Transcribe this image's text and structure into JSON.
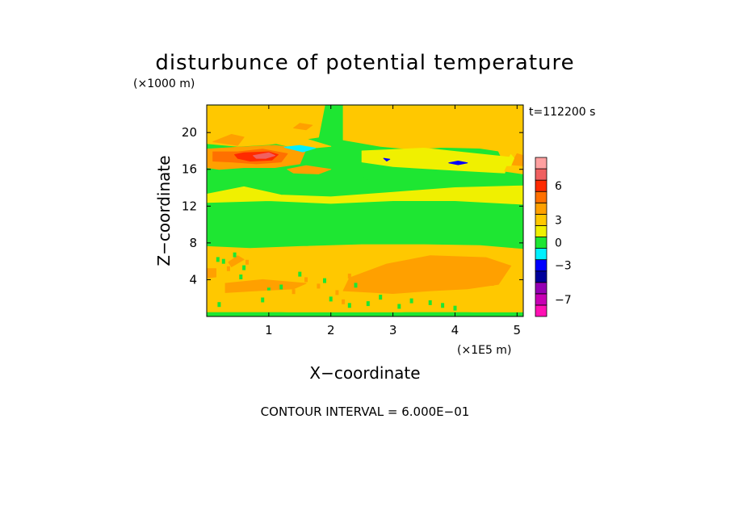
{
  "chart_data": {
    "type": "heatmap",
    "title": "disturbunce of potential temperature",
    "y_unit_label": "(×1000 m)",
    "x_unit_label": "(×1E5 m)",
    "xlabel": "X−coordinate",
    "ylabel": "Z−coordinate",
    "time_label": "t=112200 s",
    "footer": "CONTOUR INTERVAL = 6.000E−01",
    "xlim": [
      0,
      5.1
    ],
    "ylim": [
      0,
      23
    ],
    "x_ticks": [
      {
        "v": 1,
        "label": "1"
      },
      {
        "v": 2,
        "label": "2"
      },
      {
        "v": 3,
        "label": "3"
      },
      {
        "v": 4,
        "label": "4"
      },
      {
        "v": 5,
        "label": "5"
      }
    ],
    "y_ticks": [
      {
        "v": 4,
        "label": "4"
      },
      {
        "v": 8,
        "label": "8"
      },
      {
        "v": 12,
        "label": "12"
      },
      {
        "v": 16,
        "label": "16"
      },
      {
        "v": 20,
        "label": "20"
      }
    ],
    "colorbar": {
      "colors": [
        "#ff10b4",
        "#c800b4",
        "#9600b4",
        "#00009b",
        "#0000ff",
        "#00f0ff",
        "#1ee632",
        "#f0f000",
        "#ffc800",
        "#ffa000",
        "#ff7000",
        "#ff2a00",
        "#f06060",
        "#ffa0a0"
      ],
      "labels": [
        {
          "index": 1.5,
          "label": "−7"
        },
        {
          "index": 4.5,
          "label": "−3"
        },
        {
          "index": 6.5,
          "label": "0"
        },
        {
          "index": 8.5,
          "label": "3"
        },
        {
          "index": 11.5,
          "label": "6"
        }
      ]
    },
    "field": {
      "background_level": 6,
      "regions": [
        {
          "level": 8,
          "points": [
            [
              0,
              0.5
            ],
            [
              1.2,
              0.5
            ],
            [
              2.5,
              0.3
            ],
            [
              3.2,
              0.5
            ],
            [
              4.2,
              0.5
            ],
            [
              5.1,
              0.3
            ],
            [
              5.1,
              7.3
            ],
            [
              4.4,
              7.7
            ],
            [
              3.5,
              7.8
            ],
            [
              2.5,
              7.8
            ],
            [
              1.5,
              7.6
            ],
            [
              0.7,
              7.4
            ],
            [
              0,
              7.6
            ]
          ]
        },
        {
          "level": 9,
          "points": [
            [
              2.2,
              2.8
            ],
            [
              3.0,
              2.5
            ],
            [
              3.6,
              2.8
            ],
            [
              4.2,
              3.0
            ],
            [
              4.7,
              3.5
            ],
            [
              4.9,
              5.5
            ],
            [
              4.5,
              6.4
            ],
            [
              3.6,
              6.6
            ],
            [
              2.9,
              5.7
            ],
            [
              2.3,
              4.2
            ]
          ]
        },
        {
          "level": 9,
          "points": [
            [
              0.3,
              2.6
            ],
            [
              0.8,
              2.8
            ],
            [
              1.4,
              3.0
            ],
            [
              1.6,
              3.6
            ],
            [
              0.9,
              4.0
            ],
            [
              0.3,
              3.6
            ]
          ]
        },
        {
          "level": 9,
          "points": [
            [
              0,
              4.2
            ],
            [
              0.15,
              4.3
            ],
            [
              0.15,
              5.2
            ],
            [
              0,
              5.2
            ]
          ]
        },
        {
          "level": 9,
          "points": [
            [
              0.4,
              5.4
            ],
            [
              0.6,
              6.2
            ],
            [
              0.5,
              6.6
            ],
            [
              0.35,
              5.9
            ]
          ]
        },
        {
          "level": 7,
          "points": [
            [
              0,
              13.3
            ],
            [
              0.6,
              14.1
            ],
            [
              1.2,
              13.2
            ],
            [
              2.0,
              13.0
            ],
            [
              3.0,
              13.5
            ],
            [
              4.0,
              14.0
            ],
            [
              5.1,
              14.2
            ],
            [
              5.1,
              12.2
            ],
            [
              4.0,
              12.6
            ],
            [
              3.0,
              12.6
            ],
            [
              2.0,
              12.3
            ],
            [
              1.0,
              12.6
            ],
            [
              0,
              12.4
            ]
          ]
        },
        {
          "level": 8,
          "points": [
            [
              0,
              22.9
            ],
            [
              0,
              18.8
            ],
            [
              0.5,
              18.5
            ],
            [
              1.0,
              18.7
            ],
            [
              1.5,
              19.2
            ],
            [
              1.8,
              19.5
            ],
            [
              1.9,
              22.9
            ]
          ]
        },
        {
          "level": 8,
          "points": [
            [
              2.2,
              22.9
            ],
            [
              2.2,
              19.2
            ],
            [
              2.8,
              18.5
            ],
            [
              3.3,
              18.2
            ],
            [
              3.8,
              18.4
            ],
            [
              4.4,
              18.3
            ],
            [
              4.7,
              18.0
            ],
            [
              4.8,
              16.5
            ],
            [
              5.1,
              16.0
            ],
            [
              5.1,
              22.9
            ]
          ]
        },
        {
          "level": 7,
          "points": [
            [
              2.5,
              18.0
            ],
            [
              3.5,
              18.3
            ],
            [
              4.2,
              17.8
            ],
            [
              4.9,
              17.3
            ],
            [
              4.8,
              15.6
            ],
            [
              4.0,
              15.9
            ],
            [
              3.0,
              16.3
            ],
            [
              2.5,
              16.8
            ]
          ]
        },
        {
          "level": 6,
          "points": [
            [
              2.5,
              15.2
            ],
            [
              3.2,
              15.4
            ],
            [
              4.0,
              15.4
            ],
            [
              4.8,
              15.3
            ],
            [
              4.8,
              14.6
            ],
            [
              3.5,
              14.7
            ],
            [
              2.6,
              14.8
            ]
          ]
        },
        {
          "level": 9,
          "points": [
            [
              0.1,
              19.0
            ],
            [
              0.4,
              19.8
            ],
            [
              0.6,
              19.5
            ],
            [
              0.5,
              18.6
            ]
          ]
        },
        {
          "level": 9,
          "points": [
            [
              1.4,
              20.5
            ],
            [
              1.6,
              20.3
            ],
            [
              1.7,
              20.8
            ],
            [
              1.5,
              21.0
            ]
          ]
        },
        {
          "level": 8,
          "points": [
            [
              1.0,
              19.0
            ],
            [
              1.6,
              19.3
            ],
            [
              2.0,
              18.5
            ],
            [
              1.5,
              18.2
            ]
          ]
        },
        {
          "level": 9,
          "points": [
            [
              0,
              18.2
            ],
            [
              0.5,
              18.4
            ],
            [
              1.1,
              18.6
            ],
            [
              1.6,
              18.2
            ],
            [
              1.5,
              16.6
            ],
            [
              1.1,
              16.2
            ],
            [
              0.6,
              16.2
            ],
            [
              0.2,
              16.0
            ],
            [
              0,
              16.2
            ]
          ]
        },
        {
          "level": 10,
          "points": [
            [
              0.1,
              17.9
            ],
            [
              0.5,
              17.9
            ],
            [
              0.9,
              18.2
            ],
            [
              1.3,
              17.7
            ],
            [
              1.2,
              16.8
            ],
            [
              0.8,
              16.6
            ],
            [
              0.4,
              16.8
            ],
            [
              0.1,
              16.9
            ]
          ]
        },
        {
          "level": 11,
          "points": [
            [
              0.45,
              17.6
            ],
            [
              0.6,
              17.8
            ],
            [
              1.0,
              17.9
            ],
            [
              1.15,
              17.6
            ],
            [
              1.05,
              17.0
            ],
            [
              0.7,
              16.9
            ],
            [
              0.5,
              17.2
            ]
          ]
        },
        {
          "level": 12,
          "points": [
            [
              0.75,
              17.5
            ],
            [
              1.0,
              17.8
            ],
            [
              1.1,
              17.5
            ],
            [
              0.95,
              17.2
            ],
            [
              0.8,
              17.2
            ]
          ]
        },
        {
          "level": 9,
          "points": [
            [
              1.3,
              16.0
            ],
            [
              1.6,
              16.4
            ],
            [
              2.0,
              16.0
            ],
            [
              1.8,
              15.5
            ],
            [
              1.4,
              15.6
            ]
          ]
        },
        {
          "level": 5,
          "points": [
            [
              1.25,
              18.4
            ],
            [
              1.5,
              18.6
            ],
            [
              1.75,
              18.3
            ],
            [
              1.55,
              17.9
            ]
          ]
        },
        {
          "level": 4,
          "points": [
            [
              2.85,
              17.2
            ],
            [
              2.95,
              17.1
            ],
            [
              2.9,
              16.9
            ]
          ]
        },
        {
          "level": 4,
          "points": [
            [
              3.9,
              16.7
            ],
            [
              4.05,
              16.9
            ],
            [
              4.2,
              16.7
            ],
            [
              4.05,
              16.5
            ]
          ]
        },
        {
          "level": 8,
          "points": [
            [
              4.9,
              17.2
            ],
            [
              5.1,
              18.2
            ],
            [
              5.1,
              15.5
            ],
            [
              4.8,
              15.8
            ]
          ]
        },
        {
          "level": 9,
          "points": [
            [
              4.9,
              16.5
            ],
            [
              5.0,
              17.7
            ],
            [
              5.1,
              17.5
            ],
            [
              5.1,
              16.4
            ]
          ]
        },
        {
          "level": 7,
          "points": [
            [
              4.8,
              16.4
            ],
            [
              4.9,
              17.6
            ],
            [
              4.95,
              17.2
            ],
            [
              4.9,
              16.4
            ]
          ]
        }
      ],
      "dots": [
        {
          "level": 6,
          "points": [
            [
              0.18,
              6.2
            ],
            [
              0.27,
              6.0
            ],
            [
              0.55,
              4.3
            ],
            [
              0.6,
              5.3
            ],
            [
              1.2,
              3.2
            ],
            [
              1.5,
              4.6
            ],
            [
              1.9,
              3.9
            ],
            [
              2.0,
              1.9
            ],
            [
              2.4,
              3.4
            ],
            [
              2.8,
              2.1
            ],
            [
              3.3,
              1.7
            ],
            [
              3.6,
              1.5
            ],
            [
              0.2,
              1.3
            ],
            [
              0.9,
              1.8
            ],
            [
              1.0,
              3.1
            ],
            [
              2.3,
              1.2
            ],
            [
              2.6,
              1.4
            ],
            [
              3.1,
              1.1
            ],
            [
              3.8,
              1.2
            ],
            [
              4.0,
              0.9
            ],
            [
              0.45,
              6.7
            ]
          ]
        },
        {
          "level": 9,
          "points": [
            [
              0.4,
              3.1
            ],
            [
              0.55,
              3.3
            ],
            [
              1.4,
              2.7
            ],
            [
              1.6,
              4.0
            ],
            [
              2.1,
              2.6
            ],
            [
              2.2,
              1.6
            ],
            [
              2.3,
              4.4
            ],
            [
              2.7,
              3.1
            ],
            [
              3.0,
              3.8
            ],
            [
              3.5,
              4.6
            ],
            [
              4.1,
              4.2
            ],
            [
              4.3,
              5.0
            ],
            [
              4.6,
              3.6
            ],
            [
              1.0,
              3.4
            ],
            [
              1.8,
              3.3
            ],
            [
              0.35,
              5.2
            ],
            [
              0.65,
              5.9
            ]
          ]
        }
      ],
      "bottom_band": {
        "level": 6,
        "height": 0.45
      }
    }
  }
}
